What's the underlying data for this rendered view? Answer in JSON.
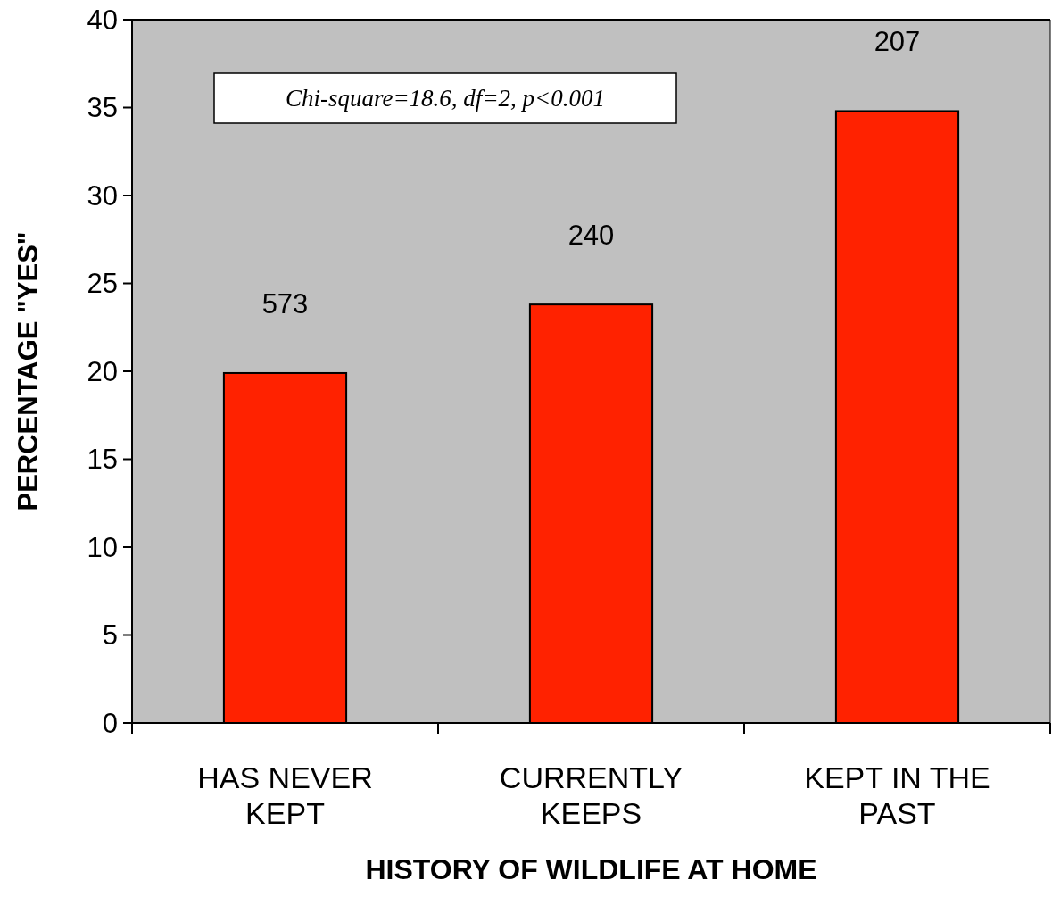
{
  "chart_data": {
    "type": "bar",
    "xlabel": "HISTORY OF WILDLIFE AT HOME",
    "ylabel": "PERCENTAGE \"YES\"",
    "categories": [
      "HAS NEVER KEPT",
      "CURRENTLY KEEPS",
      "KEPT IN THE PAST"
    ],
    "values": [
      19.9,
      23.8,
      34.8
    ],
    "color": "#ff2200",
    "ylim": [
      0,
      40
    ],
    "yticks": [
      0,
      5,
      10,
      15,
      20,
      25,
      30,
      35,
      40
    ],
    "grid": false,
    "annotations": [
      "Chi-square=18.6, df=2, p<0.001",
      "573",
      "240",
      "207"
    ]
  }
}
